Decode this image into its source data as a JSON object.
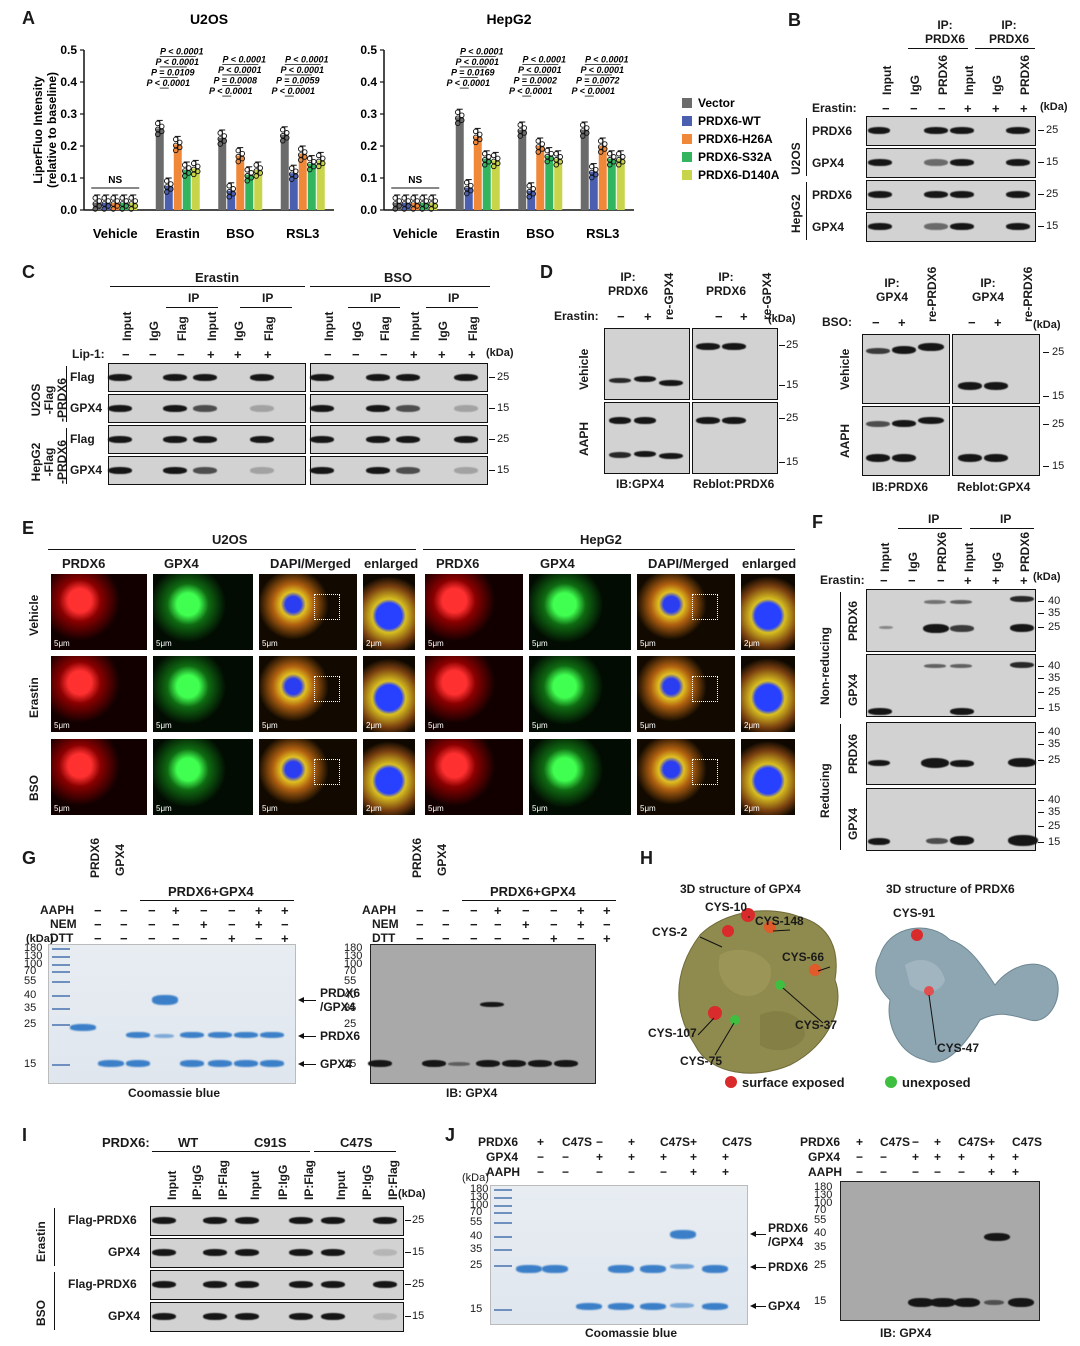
{
  "panels": {
    "A": "A",
    "B": "B",
    "C": "C",
    "D": "D",
    "E": "E",
    "F": "F",
    "G": "G",
    "H": "H",
    "I": "I",
    "J": "J"
  },
  "chart_data": [
    {
      "type": "bar",
      "title": "U2OS",
      "ylabel": "LiperFluo Intensity\n(relative to baseline)",
      "ylim": [
        0,
        0.5
      ],
      "yticks": [
        "0.0",
        "0.1",
        "0.2",
        "0.3",
        "0.4",
        "0.5"
      ],
      "categories": [
        "Vehicle",
        "Erastin",
        "BSO",
        "RSL3"
      ],
      "series": [
        {
          "name": "Vector",
          "color": "#6b6b6b",
          "values": [
            0.022,
            0.255,
            0.225,
            0.235
          ]
        },
        {
          "name": "PRDX6-WT",
          "color": "#4a5fb0",
          "values": [
            0.022,
            0.075,
            0.06,
            0.115
          ]
        },
        {
          "name": "PRDX6-H26A",
          "color": "#f0883a",
          "values": [
            0.022,
            0.205,
            0.17,
            0.175
          ]
        },
        {
          "name": "PRDX6-S32A",
          "color": "#33b560",
          "values": [
            0.022,
            0.125,
            0.11,
            0.145
          ]
        },
        {
          "name": "PRDX6-D140A",
          "color": "#c8d44a",
          "values": [
            0.022,
            0.13,
            0.125,
            0.155
          ]
        }
      ],
      "annotations": [
        "NS",
        "P < 0.0001",
        "P < 0.0001",
        "P = 0.0109",
        "P < 0.0001",
        "P < 0.0001",
        "P < 0.0001",
        "P = 0.0008",
        "P < 0.0001",
        "P < 0.0001",
        "P < 0.0001",
        "P = 0.0059",
        "P < 0.0001"
      ]
    },
    {
      "type": "bar",
      "title": "HepG2",
      "ylim": [
        0,
        0.5
      ],
      "yticks": [
        "0.0",
        "0.1",
        "0.2",
        "0.3",
        "0.4",
        "0.5"
      ],
      "categories": [
        "Vehicle",
        "Erastin",
        "BSO",
        "RSL3"
      ],
      "series": [
        {
          "name": "Vector",
          "color": "#6b6b6b",
          "values": [
            0.022,
            0.29,
            0.25,
            0.25
          ]
        },
        {
          "name": "PRDX6-WT",
          "color": "#4a5fb0",
          "values": [
            0.022,
            0.07,
            0.06,
            0.12
          ]
        },
        {
          "name": "PRDX6-H26A",
          "color": "#f0883a",
          "values": [
            0.022,
            0.23,
            0.2,
            0.2
          ]
        },
        {
          "name": "PRDX6-S32A",
          "color": "#33b560",
          "values": [
            0.022,
            0.16,
            0.17,
            0.16
          ]
        },
        {
          "name": "PRDX6-D140A",
          "color": "#c8d44a",
          "values": [
            0.022,
            0.155,
            0.16,
            0.16
          ]
        }
      ],
      "annotations": [
        "NS",
        "P < 0.0001",
        "P < 0.0001",
        "P = 0.0169",
        "P < 0.0001",
        "P < 0.0001",
        "P < 0.0001",
        "P = 0.0002",
        "P < 0.0001",
        "P < 0.0001",
        "P < 0.0001",
        "P = 0.0072",
        "P < 0.0001"
      ]
    }
  ],
  "panelB": {
    "ip1": "IP:",
    "ip1b": "PRDX6",
    "ip2": "IP:",
    "ip2b": "PRDX6",
    "lanes": [
      "Input",
      "IgG",
      "PRDX6",
      "Input",
      "IgG",
      "PRDX6"
    ],
    "erastin_label": "Erastin:",
    "erastin": [
      "−",
      "−",
      "−",
      "+",
      "+",
      "+"
    ],
    "kda": "(kDa)",
    "cells": [
      "U2OS",
      "HepG2"
    ],
    "rows": [
      "PRDX6",
      "GPX4",
      "PRDX6",
      "GPX4"
    ],
    "mw": [
      "25",
      "15",
      "25",
      "15"
    ]
  },
  "panelC": {
    "erastin": "Erastin",
    "bso": "BSO",
    "ip": "IP",
    "lanes": [
      "Input",
      "IgG",
      "Flag",
      "Input",
      "IgG",
      "Flag"
    ],
    "lip_label": "Lip-1:",
    "lip": [
      "−",
      "−",
      "−",
      "+",
      "+",
      "+"
    ],
    "kda": "(kDa)",
    "cells": [
      "U2OS\n-Flag\n-PRDX6",
      "HepG2\n-Flag\n-PRDX6"
    ],
    "rows": [
      "Flag",
      "GPX4",
      "Flag",
      "GPX4"
    ],
    "mw": [
      "25",
      "15",
      "25",
      "15"
    ]
  },
  "panelD": {
    "ip_l": "IP:",
    "ip_lb": "PRDX6",
    "ip_r": "IP:",
    "ip_rb": "PRDX6",
    "re_l": "re-GPX4",
    "re_r": "re-GPX4",
    "erastin_label": "Erastin:",
    "signs": [
      "−",
      "+",
      "−",
      "+"
    ],
    "kda": "(kDa)",
    "rows": [
      "Vehicle",
      "AAPH"
    ],
    "mw": [
      "25",
      "15",
      "25",
      "15"
    ],
    "ib": "IB:GPX4",
    "reblot": "Reblot:PRDX6",
    "ip2_l": "IP:",
    "ip2_lb": "GPX4",
    "ip2_r": "IP:",
    "ip2_rb": "GPX4",
    "re2_l": "re-PRDX6",
    "re2_r": "re-PRDX6",
    "bso_label": "BSO:",
    "ib2": "IB:PRDX6",
    "reblot2": "Reblot:GPX4"
  },
  "panelE": {
    "cells": [
      "U2OS",
      "HepG2"
    ],
    "cols": [
      "PRDX6",
      "GPX4",
      "DAPI/Merged",
      "enlarged",
      "PRDX6",
      "GPX4",
      "DAPI/Merged",
      "enlarged"
    ],
    "rows": [
      "Vehicle",
      "Erastin",
      "BSO"
    ],
    "scale": "5μm",
    "scale2": "2μm"
  },
  "panelF": {
    "ip": "IP",
    "lanes": [
      "Input",
      "IgG",
      "PRDX6",
      "Input",
      "IgG",
      "PRDX6"
    ],
    "erastin_label": "Erastin:",
    "erastin": [
      "−",
      "−",
      "−",
      "+",
      "+",
      "+"
    ],
    "kda": "(kDa)",
    "conds": [
      "Non-reducing",
      "Reducing"
    ],
    "rows": [
      "PRDX6",
      "GPX4",
      "PRDX6",
      "GPX4"
    ],
    "mw": [
      "40",
      "35",
      "25",
      "15"
    ]
  },
  "panelG": {
    "lanes_top": [
      "PRDX6",
      "GPX4"
    ],
    "mix": "PRDX6+GPX4",
    "aaph": "AAPH",
    "nem": "NEM",
    "dtt": "DTT",
    "kda": "(kDa)",
    "ladder": [
      "180",
      "130",
      "100",
      "70",
      "55",
      "40",
      "35",
      "25",
      "15"
    ],
    "arrow1": "PRDX6\n/GPX4",
    "arrow2": "PRDX6",
    "arrow3": "GPX4",
    "caption_l": "Coomassie blue",
    "caption_r": "IB: GPX4",
    "aaph_row": [
      "−",
      "−",
      "−",
      "+",
      "−",
      "−",
      "+",
      "+"
    ],
    "nem_row": [
      "−",
      "−",
      "−",
      "−",
      "+",
      "−",
      "+",
      "−"
    ],
    "dtt_row": [
      "−",
      "−",
      "−",
      "−",
      "−",
      "+",
      "−",
      "+"
    ]
  },
  "panelH": {
    "title_l": "3D structure of GPX4",
    "title_r": "3D structure of PRDX6",
    "gpx4_labels": [
      "CYS-2",
      "CYS-10",
      "CYS-148",
      "CYS-66",
      "CYS-37",
      "CYS-107",
      "CYS-75"
    ],
    "prdx6_labels": [
      "CYS-91",
      "CYS-47"
    ],
    "legend_exposed": "surface exposed",
    "legend_unexposed": "unexposed"
  },
  "panelI": {
    "prdx6_label": "PRDX6:",
    "groups": [
      "WT",
      "C91S",
      "C47S"
    ],
    "lanes": [
      "Input",
      "IP:IgG",
      "IP:Flag",
      "Input",
      "IP:IgG",
      "IP:Flag",
      "Input",
      "IP:IgG",
      "IP:Flag"
    ],
    "kda": "(kDa)",
    "conds": [
      "Erastin",
      "BSO"
    ],
    "rows": [
      "Flag-PRDX6",
      "GPX4",
      "Flag-PRDX6",
      "GPX4"
    ],
    "mw": [
      "25",
      "15",
      "25",
      "15"
    ]
  },
  "panelJ": {
    "prdx6": "PRDX6",
    "gpx4": "GPX4",
    "aaph": "AAPH",
    "kda": "(kDa)",
    "prdx6_row": [
      "+",
      "C47S",
      "−",
      "+",
      "C47S",
      "+",
      "C47S"
    ],
    "gpx4_row": [
      "−",
      "−",
      "+",
      "+",
      "+",
      "+",
      "+"
    ],
    "aaph_row": [
      "−",
      "−",
      "−",
      "−",
      "−",
      "+",
      "+"
    ],
    "ladder": [
      "180",
      "130",
      "100",
      "70",
      "55",
      "40",
      "35",
      "25",
      "15"
    ],
    "arrow1": "PRDX6\n/GPX4",
    "arrow2": "PRDX6",
    "arrow3": "GPX4",
    "caption_l": "Coomassie blue",
    "caption_r": "IB:  GPX4"
  }
}
